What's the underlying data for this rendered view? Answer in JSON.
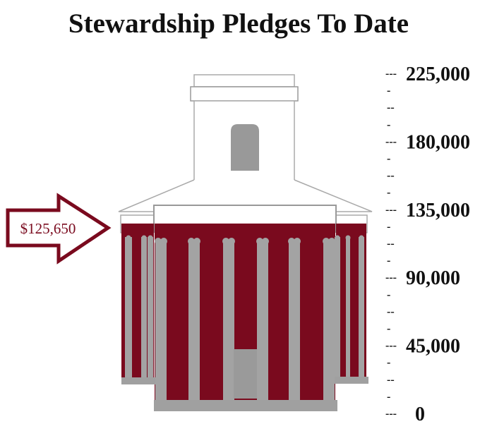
{
  "chart_data": {
    "type": "bar",
    "title": "Stewardship Pledges To Date",
    "values": [
      125650
    ],
    "value_label": "$125,650",
    "ylim": [
      0,
      225000
    ],
    "tick_values": [
      0,
      45000,
      90000,
      135000,
      180000,
      225000
    ],
    "tick_labels": [
      "0",
      "45,000",
      "90,000",
      "135,000",
      "180,000",
      "225,000"
    ],
    "minor_ticks_per_interval": 3,
    "grid": false,
    "style": "building-thermometer",
    "colors": {
      "fill": "#7a0a1e",
      "structure": "#a0a0a0",
      "outline": "#9a9a9a",
      "arrow": "#7a0a1e"
    }
  }
}
